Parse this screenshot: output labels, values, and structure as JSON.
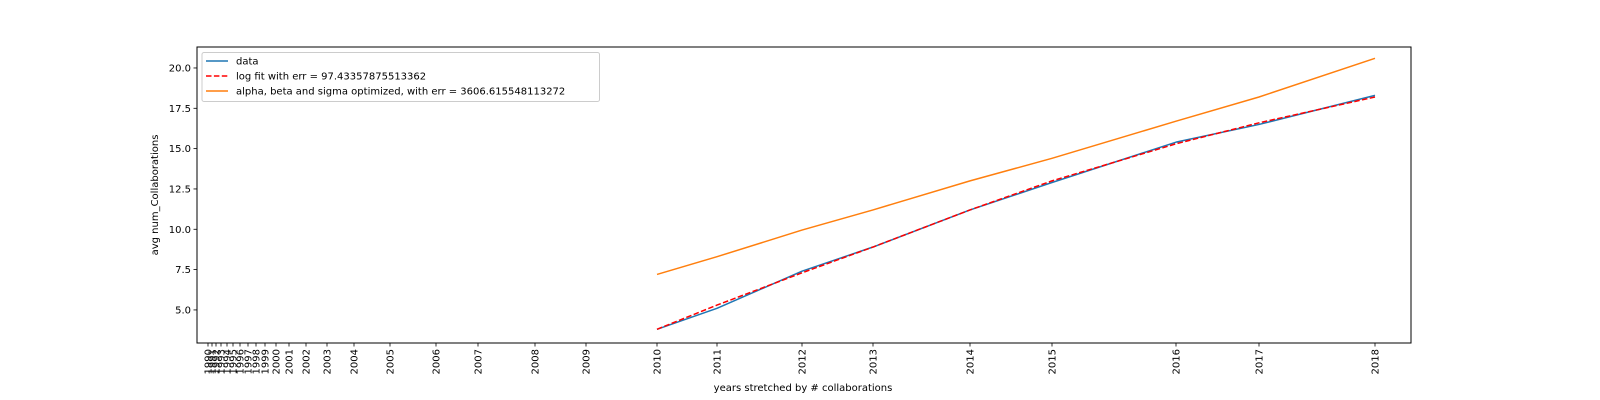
{
  "chart_data": {
    "type": "line",
    "title": "",
    "xlabel": "years stretched by # collaborations",
    "ylabel": "avg num_Collaborations",
    "ylim": [
      2.95,
      21.3
    ],
    "grid": false,
    "legend_position": "upper-left",
    "y_ticks": [
      5.0,
      7.5,
      10.0,
      12.5,
      15.0,
      17.5,
      20.0
    ],
    "y_tick_labels": [
      "5.0",
      "7.5",
      "10.0",
      "12.5",
      "15.0",
      "17.5",
      "20.0"
    ],
    "x_tick_labels": [
      "1990",
      "1991",
      "1992",
      "1993",
      "1994",
      "1995",
      "1996",
      "1997",
      "1998",
      "1999",
      "2000",
      "2001",
      "2002",
      "2003",
      "2004",
      "2005",
      "2006",
      "2007",
      "2008",
      "2009",
      "2010",
      "2011",
      "2012",
      "2013",
      "2014",
      "2015",
      "2016",
      "2017",
      "2018"
    ],
    "series": [
      {
        "name": "data",
        "color": "#1f77b4",
        "style": "solid",
        "x": [
          "2010",
          "2011",
          "2012",
          "2013",
          "2014",
          "2015",
          "2016",
          "2017",
          "2018"
        ],
        "y": [
          3.8,
          5.1,
          7.4,
          8.9,
          11.2,
          12.9,
          15.4,
          16.5,
          18.3
        ]
      },
      {
        "name": "log fit with err = 97.43357875513362",
        "color": "#ff0000",
        "style": "dashed",
        "x": [
          "2010",
          "2011",
          "2012",
          "2013",
          "2014",
          "2015",
          "2016",
          "2017",
          "2018"
        ],
        "y": [
          3.8,
          5.3,
          7.3,
          8.9,
          11.2,
          13.0,
          15.3,
          16.6,
          18.2
        ]
      },
      {
        "name": "alpha, beta and sigma optimized, with err = 3606.615548113272",
        "color": "#ff7f0e",
        "style": "solid",
        "x": [
          "2010",
          "2011",
          "2012",
          "2013",
          "2014",
          "2015",
          "2016",
          "2017",
          "2018"
        ],
        "y": [
          7.2,
          8.3,
          9.95,
          11.2,
          13.0,
          14.4,
          16.7,
          18.2,
          20.6
        ]
      }
    ]
  }
}
